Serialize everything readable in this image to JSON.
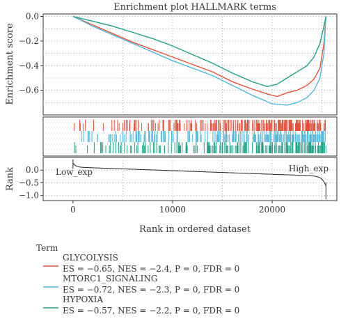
{
  "chart_data": {
    "type": "line",
    "title": "Enrichment plot HALLMARK terms",
    "ylabel_top": "Enrichment score",
    "ylabel_bottom": "Rank",
    "xlabel": "Rank in ordered dataset",
    "xlim": [
      -3000,
      26500
    ],
    "ylim_top": [
      -0.8,
      0.02
    ],
    "ylim_bottom": [
      -1.2,
      0.5
    ],
    "x_ticks": [
      0,
      10000,
      20000
    ],
    "x_tick_labels": [
      "0",
      "10000",
      "20000"
    ],
    "y_ticks_top": [
      0.0,
      -0.2,
      -0.4,
      -0.6
    ],
    "y_tick_labels_top": [
      "0.0",
      "−0.2",
      "−0.4",
      "−0.6"
    ],
    "y_ticks_bottom": [
      0.0,
      -0.5,
      -1.0
    ],
    "y_tick_labels_bottom": [
      "0.0",
      "−0.5",
      "−1.0"
    ],
    "grid": true,
    "legend_title": "Term",
    "legend_position": "bottom-left",
    "annotations": {
      "low": "Low_exp",
      "high": "High_exp"
    },
    "series": [
      {
        "name": "GLYCOLYSIS",
        "stats": "ES = −0.65, NES = −2.4, P = 0, FDR = 0",
        "color": "#e8503a",
        "x": [
          0,
          2000,
          4000,
          6000,
          8000,
          10000,
          12000,
          14000,
          16000,
          18000,
          19500,
          20500,
          21500,
          22500,
          23500,
          24200,
          24800,
          25200,
          25400
        ],
        "y": [
          0.0,
          -0.07,
          -0.14,
          -0.21,
          -0.27,
          -0.33,
          -0.39,
          -0.45,
          -0.53,
          -0.59,
          -0.63,
          -0.65,
          -0.62,
          -0.6,
          -0.56,
          -0.51,
          -0.42,
          -0.22,
          0.0
        ]
      },
      {
        "name": "MTORC1_SIGNALING",
        "stats": "ES = −0.72, NES = −2.3, P = 0, FDR = 0",
        "color": "#4fb8de",
        "x": [
          0,
          2000,
          4000,
          6000,
          8000,
          10000,
          12000,
          14000,
          16000,
          18000,
          20000,
          21500,
          22500,
          23500,
          24200,
          24800,
          25200,
          25400
        ],
        "y": [
          0.0,
          -0.08,
          -0.15,
          -0.22,
          -0.29,
          -0.36,
          -0.42,
          -0.48,
          -0.56,
          -0.64,
          -0.71,
          -0.72,
          -0.7,
          -0.66,
          -0.6,
          -0.5,
          -0.3,
          0.0
        ]
      },
      {
        "name": "HYPOXIA",
        "stats": "ES = −0.57, NES = −2.2, P = 0, FDR = 0",
        "color": "#1fa187",
        "x": [
          0,
          2000,
          4000,
          6000,
          8000,
          10000,
          12000,
          14000,
          16000,
          18000,
          19500,
          20500,
          21500,
          22500,
          23500,
          24200,
          24800,
          25200,
          25400
        ],
        "y": [
          0.0,
          -0.04,
          -0.08,
          -0.13,
          -0.18,
          -0.24,
          -0.31,
          -0.38,
          -0.46,
          -0.53,
          -0.57,
          -0.55,
          -0.5,
          -0.45,
          -0.4,
          -0.33,
          -0.22,
          -0.08,
          0.0
        ]
      }
    ]
  }
}
